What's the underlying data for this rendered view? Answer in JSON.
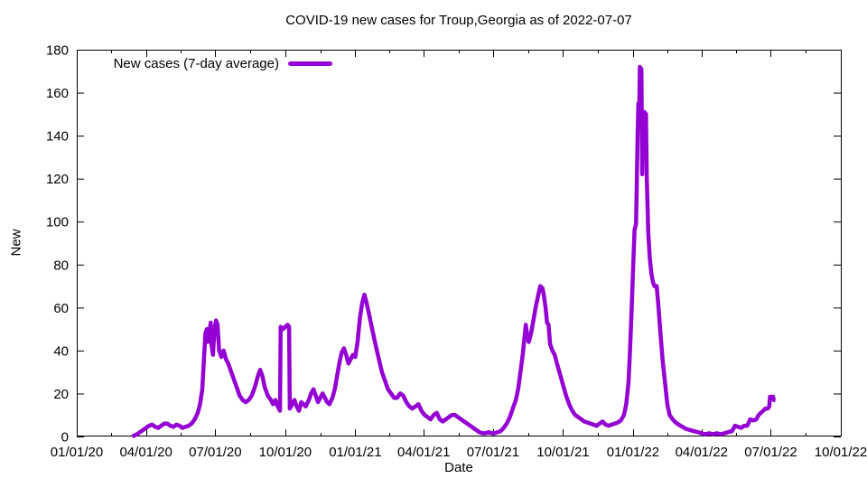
{
  "chart_data": {
    "type": "line",
    "title": "COVID-19 new cases for Troup,Georgia as of 2022-07-07",
    "xlabel": "Date",
    "ylabel": "New",
    "series_name": "New cases (7-day average)",
    "color": "#9400d3",
    "grid": false,
    "legend_position": "top-left-inside",
    "x_range": [
      "2020-01-01",
      "2022-10-01"
    ],
    "ylim": [
      0,
      180
    ],
    "y_ticks": [
      0,
      20,
      40,
      60,
      80,
      100,
      120,
      140,
      160,
      180
    ],
    "x_ticks": [
      [
        "2020-01-01",
        "01/01/20"
      ],
      [
        "2020-04-01",
        "04/01/20"
      ],
      [
        "2020-07-01",
        "07/01/20"
      ],
      [
        "2020-10-01",
        "10/01/20"
      ],
      [
        "2021-01-01",
        "01/01/21"
      ],
      [
        "2021-04-01",
        "04/01/21"
      ],
      [
        "2021-07-01",
        "07/01/21"
      ],
      [
        "2021-10-01",
        "10/01/21"
      ],
      [
        "2022-01-01",
        "01/01/22"
      ],
      [
        "2022-04-01",
        "04/01/22"
      ],
      [
        "2022-07-01",
        "07/01/22"
      ],
      [
        "2022-10-01",
        "10/01/22"
      ]
    ],
    "points": [
      [
        "2020-03-14",
        0
      ],
      [
        "2020-03-17",
        0.5
      ],
      [
        "2020-03-20",
        1
      ],
      [
        "2020-03-24",
        2
      ],
      [
        "2020-03-28",
        3
      ],
      [
        "2020-04-01",
        4
      ],
      [
        "2020-04-05",
        5
      ],
      [
        "2020-04-09",
        5.5
      ],
      [
        "2020-04-13",
        4.5
      ],
      [
        "2020-04-17",
        4
      ],
      [
        "2020-04-21",
        5
      ],
      [
        "2020-04-25",
        6
      ],
      [
        "2020-04-29",
        6
      ],
      [
        "2020-05-03",
        5
      ],
      [
        "2020-05-07",
        4.5
      ],
      [
        "2020-05-11",
        5.5
      ],
      [
        "2020-05-15",
        5
      ],
      [
        "2020-05-19",
        4
      ],
      [
        "2020-05-23",
        4.5
      ],
      [
        "2020-05-27",
        5
      ],
      [
        "2020-05-31",
        6
      ],
      [
        "2020-06-04",
        8
      ],
      [
        "2020-06-08",
        11
      ],
      [
        "2020-06-11",
        15
      ],
      [
        "2020-06-14",
        22
      ],
      [
        "2020-06-16",
        35
      ],
      [
        "2020-06-18",
        48
      ],
      [
        "2020-06-20",
        50
      ],
      [
        "2020-06-21",
        44
      ],
      [
        "2020-06-23",
        47
      ],
      [
        "2020-06-25",
        53
      ],
      [
        "2020-06-26",
        43
      ],
      [
        "2020-06-28",
        38
      ],
      [
        "2020-06-30",
        50
      ],
      [
        "2020-07-02",
        54
      ],
      [
        "2020-07-04",
        52
      ],
      [
        "2020-07-06",
        40
      ],
      [
        "2020-07-09",
        37
      ],
      [
        "2020-07-12",
        40
      ],
      [
        "2020-07-15",
        36
      ],
      [
        "2020-07-18",
        34
      ],
      [
        "2020-07-21",
        31
      ],
      [
        "2020-07-25",
        27
      ],
      [
        "2020-07-29",
        23
      ],
      [
        "2020-08-02",
        19
      ],
      [
        "2020-08-06",
        17
      ],
      [
        "2020-08-10",
        16
      ],
      [
        "2020-08-14",
        17
      ],
      [
        "2020-08-18",
        19
      ],
      [
        "2020-08-22",
        23
      ],
      [
        "2020-08-26",
        28
      ],
      [
        "2020-08-29",
        31
      ],
      [
        "2020-09-01",
        28
      ],
      [
        "2020-09-04",
        23
      ],
      [
        "2020-09-08",
        19
      ],
      [
        "2020-09-12",
        17
      ],
      [
        "2020-09-15",
        15
      ],
      [
        "2020-09-18",
        17
      ],
      [
        "2020-09-21",
        14
      ],
      [
        "2020-09-24",
        12
      ],
      [
        "2020-09-25",
        51
      ],
      [
        "2020-09-28",
        50
      ],
      [
        "2020-10-01",
        51
      ],
      [
        "2020-10-04",
        52
      ],
      [
        "2020-10-06",
        51
      ],
      [
        "2020-10-07",
        13
      ],
      [
        "2020-10-10",
        15
      ],
      [
        "2020-10-13",
        17
      ],
      [
        "2020-10-16",
        14
      ],
      [
        "2020-10-19",
        12
      ],
      [
        "2020-10-22",
        16
      ],
      [
        "2020-10-25",
        15
      ],
      [
        "2020-10-28",
        14
      ],
      [
        "2020-11-01",
        17
      ],
      [
        "2020-11-04",
        20
      ],
      [
        "2020-11-07",
        22
      ],
      [
        "2020-11-10",
        19
      ],
      [
        "2020-11-13",
        16
      ],
      [
        "2020-11-16",
        18
      ],
      [
        "2020-11-19",
        20
      ],
      [
        "2020-11-22",
        18
      ],
      [
        "2020-11-25",
        16
      ],
      [
        "2020-11-28",
        15
      ],
      [
        "2020-12-02",
        18
      ],
      [
        "2020-12-05",
        22
      ],
      [
        "2020-12-08",
        28
      ],
      [
        "2020-12-11",
        34
      ],
      [
        "2020-12-14",
        39
      ],
      [
        "2020-12-17",
        41
      ],
      [
        "2020-12-20",
        38
      ],
      [
        "2020-12-23",
        34
      ],
      [
        "2020-12-26",
        36
      ],
      [
        "2020-12-29",
        38
      ],
      [
        "2021-01-01",
        37
      ],
      [
        "2021-01-04",
        44
      ],
      [
        "2021-01-07",
        55
      ],
      [
        "2021-01-10",
        62
      ],
      [
        "2021-01-13",
        66
      ],
      [
        "2021-01-16",
        62
      ],
      [
        "2021-01-19",
        57
      ],
      [
        "2021-01-22",
        52
      ],
      [
        "2021-01-25",
        47
      ],
      [
        "2021-01-28",
        42
      ],
      [
        "2021-02-01",
        36
      ],
      [
        "2021-02-05",
        30
      ],
      [
        "2021-02-09",
        26
      ],
      [
        "2021-02-13",
        22
      ],
      [
        "2021-02-17",
        20
      ],
      [
        "2021-02-21",
        18
      ],
      [
        "2021-02-25",
        18
      ],
      [
        "2021-03-01",
        20
      ],
      [
        "2021-03-05",
        19
      ],
      [
        "2021-03-09",
        16
      ],
      [
        "2021-03-13",
        14
      ],
      [
        "2021-03-17",
        13
      ],
      [
        "2021-03-21",
        14
      ],
      [
        "2021-03-25",
        15
      ],
      [
        "2021-03-29",
        12
      ],
      [
        "2021-04-02",
        10
      ],
      [
        "2021-04-06",
        9
      ],
      [
        "2021-04-10",
        8
      ],
      [
        "2021-04-14",
        10
      ],
      [
        "2021-04-18",
        11
      ],
      [
        "2021-04-22",
        8
      ],
      [
        "2021-04-26",
        7
      ],
      [
        "2021-04-30",
        8
      ],
      [
        "2021-05-04",
        9
      ],
      [
        "2021-05-08",
        10
      ],
      [
        "2021-05-12",
        10
      ],
      [
        "2021-05-16",
        9
      ],
      [
        "2021-05-20",
        8
      ],
      [
        "2021-05-24",
        7
      ],
      [
        "2021-05-28",
        6
      ],
      [
        "2021-06-01",
        5
      ],
      [
        "2021-06-05",
        4
      ],
      [
        "2021-06-09",
        3
      ],
      [
        "2021-06-13",
        2
      ],
      [
        "2021-06-17",
        1.5
      ],
      [
        "2021-06-21",
        1.5
      ],
      [
        "2021-06-25",
        2
      ],
      [
        "2021-06-29",
        1.5
      ],
      [
        "2021-07-03",
        1.5
      ],
      [
        "2021-07-07",
        2
      ],
      [
        "2021-07-11",
        2.5
      ],
      [
        "2021-07-15",
        4
      ],
      [
        "2021-07-19",
        6
      ],
      [
        "2021-07-23",
        9
      ],
      [
        "2021-07-27",
        13
      ],
      [
        "2021-07-31",
        17
      ],
      [
        "2021-08-03",
        22
      ],
      [
        "2021-08-06",
        30
      ],
      [
        "2021-08-09",
        38
      ],
      [
        "2021-08-11",
        45
      ],
      [
        "2021-08-13",
        52
      ],
      [
        "2021-08-15",
        47
      ],
      [
        "2021-08-17",
        44
      ],
      [
        "2021-08-20",
        48
      ],
      [
        "2021-08-23",
        54
      ],
      [
        "2021-08-26",
        60
      ],
      [
        "2021-08-29",
        65
      ],
      [
        "2021-09-01",
        70
      ],
      [
        "2021-09-04",
        69
      ],
      [
        "2021-09-06",
        65
      ],
      [
        "2021-09-08",
        60
      ],
      [
        "2021-09-10",
        53
      ],
      [
        "2021-09-12",
        52
      ],
      [
        "2021-09-14",
        43
      ],
      [
        "2021-09-17",
        40
      ],
      [
        "2021-09-20",
        38
      ],
      [
        "2021-09-23",
        34
      ],
      [
        "2021-09-27",
        29
      ],
      [
        "2021-10-01",
        24
      ],
      [
        "2021-10-05",
        19
      ],
      [
        "2021-10-09",
        15
      ],
      [
        "2021-10-13",
        12
      ],
      [
        "2021-10-17",
        10
      ],
      [
        "2021-10-21",
        9
      ],
      [
        "2021-10-25",
        8
      ],
      [
        "2021-10-29",
        7
      ],
      [
        "2021-11-02",
        6.5
      ],
      [
        "2021-11-06",
        6
      ],
      [
        "2021-11-10",
        5.5
      ],
      [
        "2021-11-14",
        5
      ],
      [
        "2021-11-18",
        6
      ],
      [
        "2021-11-22",
        7
      ],
      [
        "2021-11-26",
        5.5
      ],
      [
        "2021-11-30",
        5
      ],
      [
        "2021-12-04",
        5.5
      ],
      [
        "2021-12-08",
        6
      ],
      [
        "2021-12-12",
        6.5
      ],
      [
        "2021-12-16",
        7.5
      ],
      [
        "2021-12-20",
        10
      ],
      [
        "2021-12-23",
        15
      ],
      [
        "2021-12-26",
        25
      ],
      [
        "2021-12-28",
        40
      ],
      [
        "2021-12-30",
        58
      ],
      [
        "2022-01-01",
        78
      ],
      [
        "2022-01-03",
        96
      ],
      [
        "2022-01-05",
        99
      ],
      [
        "2022-01-06",
        120
      ],
      [
        "2022-01-07",
        140
      ],
      [
        "2022-01-08",
        155
      ],
      [
        "2022-01-09",
        148
      ],
      [
        "2022-01-10",
        172
      ],
      [
        "2022-01-12",
        171
      ],
      [
        "2022-01-13",
        122
      ],
      [
        "2022-01-14",
        150
      ],
      [
        "2022-01-16",
        151
      ],
      [
        "2022-01-18",
        150
      ],
      [
        "2022-01-19",
        121
      ],
      [
        "2022-01-21",
        95
      ],
      [
        "2022-01-23",
        83
      ],
      [
        "2022-01-25",
        76
      ],
      [
        "2022-01-27",
        72
      ],
      [
        "2022-01-29",
        70
      ],
      [
        "2022-02-01",
        70
      ],
      [
        "2022-02-03",
        62
      ],
      [
        "2022-02-06",
        48
      ],
      [
        "2022-02-09",
        35
      ],
      [
        "2022-02-12",
        25
      ],
      [
        "2022-02-15",
        15
      ],
      [
        "2022-02-18",
        10
      ],
      [
        "2022-02-22",
        8
      ],
      [
        "2022-02-26",
        6.5
      ],
      [
        "2022-03-02",
        5.5
      ],
      [
        "2022-03-07",
        4.5
      ],
      [
        "2022-03-12",
        3.5
      ],
      [
        "2022-03-17",
        3
      ],
      [
        "2022-03-22",
        2.5
      ],
      [
        "2022-03-27",
        2
      ],
      [
        "2022-04-01",
        1.5
      ],
      [
        "2022-04-06",
        1
      ],
      [
        "2022-04-11",
        1.5
      ],
      [
        "2022-04-16",
        1
      ],
      [
        "2022-04-21",
        1.5
      ],
      [
        "2022-04-26",
        1
      ],
      [
        "2022-05-01",
        1.5
      ],
      [
        "2022-05-06",
        2
      ],
      [
        "2022-05-11",
        2.5
      ],
      [
        "2022-05-15",
        5
      ],
      [
        "2022-05-19",
        4.5
      ],
      [
        "2022-05-23",
        4
      ],
      [
        "2022-05-27",
        5
      ],
      [
        "2022-05-31",
        5
      ],
      [
        "2022-06-04",
        8
      ],
      [
        "2022-06-08",
        7.5
      ],
      [
        "2022-06-12",
        8
      ],
      [
        "2022-06-15",
        10
      ],
      [
        "2022-06-18",
        11
      ],
      [
        "2022-06-21",
        12
      ],
      [
        "2022-06-24",
        13
      ],
      [
        "2022-06-27",
        13
      ],
      [
        "2022-06-29",
        14
      ],
      [
        "2022-06-30",
        18.5
      ],
      [
        "2022-07-04",
        18.5
      ],
      [
        "2022-07-05",
        17
      ],
      [
        "2022-07-07",
        17
      ]
    ]
  }
}
